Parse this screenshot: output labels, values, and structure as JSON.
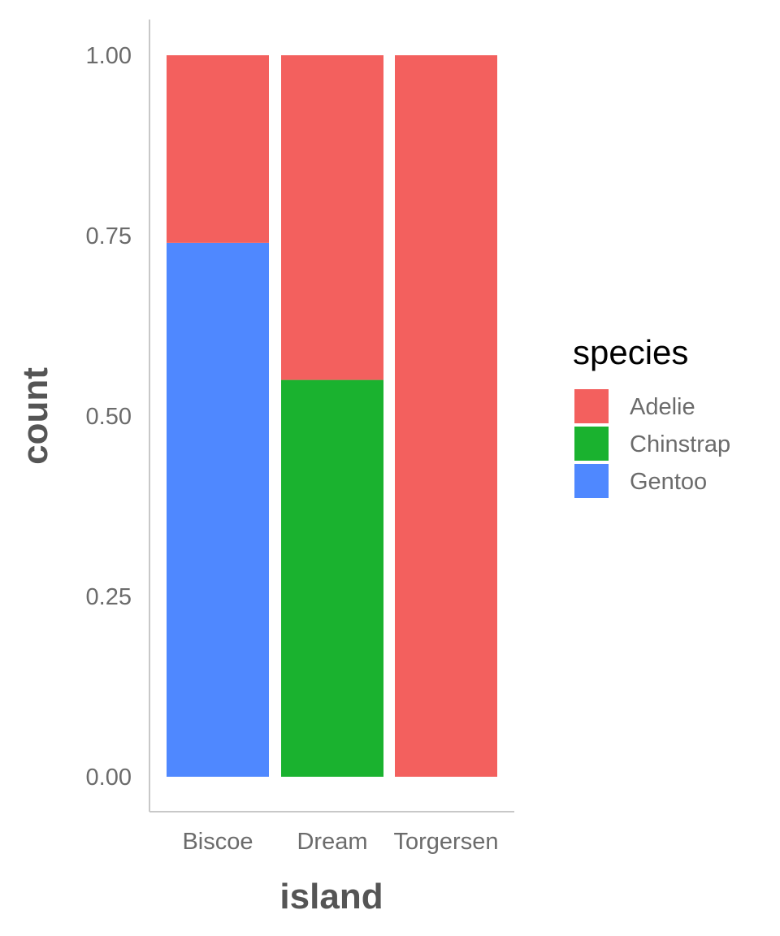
{
  "chart_data": {
    "type": "bar",
    "stacked": true,
    "position": "fill",
    "categories": [
      "Biscoe",
      "Dream",
      "Torgersen"
    ],
    "series": [
      {
        "name": "Adelie",
        "color": "#F3605E",
        "values": [
          0.26,
          0.45,
          1.0
        ]
      },
      {
        "name": "Chinstrap",
        "color": "#1AB22F",
        "values": [
          0.0,
          0.55,
          0.0
        ]
      },
      {
        "name": "Gentoo",
        "color": "#4F88FF",
        "values": [
          0.74,
          0.0,
          0.0
        ]
      }
    ],
    "stack_order_bottom_to_top": [
      "Gentoo",
      "Chinstrap",
      "Adelie"
    ],
    "xlabel": "island",
    "ylabel": "count",
    "ylim": [
      0,
      1
    ],
    "yticks": [
      "0.00",
      "0.25",
      "0.50",
      "0.75",
      "1.00"
    ],
    "legend": {
      "title": "species",
      "placement": "right",
      "entries": [
        "Adelie",
        "Chinstrap",
        "Gentoo"
      ]
    },
    "grid": false
  }
}
